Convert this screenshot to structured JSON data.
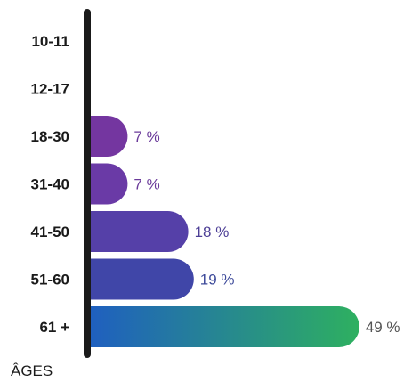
{
  "chart_data": {
    "type": "bar",
    "orientation": "horizontal",
    "categories": [
      "10-11",
      "12-17",
      "18-30",
      "31-40",
      "41-50",
      "51-60",
      "61 +"
    ],
    "values": [
      null,
      null,
      7,
      7,
      18,
      19,
      49
    ],
    "value_labels": [
      "",
      "",
      "7 %",
      "7 %",
      "18 %",
      "19 %",
      "49 %"
    ],
    "unit": "%",
    "axis_title": "ÂGES",
    "colors": {
      "bars": [
        "#7a3aa0",
        "#7a3aa0",
        "#7436a0",
        "#6a3aa6",
        "#5540a8",
        "#4046a8",
        "#1f5fc0"
      ],
      "gradient_end": "#2eb060",
      "labels": [
        "#6a3a9a",
        "#6a3a9a",
        "#6a3a9a",
        "#6a3a9a",
        "#4d3f96",
        "#3d4a9a",
        "#555555"
      ],
      "axis": "#1a1a1a"
    },
    "grid": false,
    "legend": "none"
  }
}
